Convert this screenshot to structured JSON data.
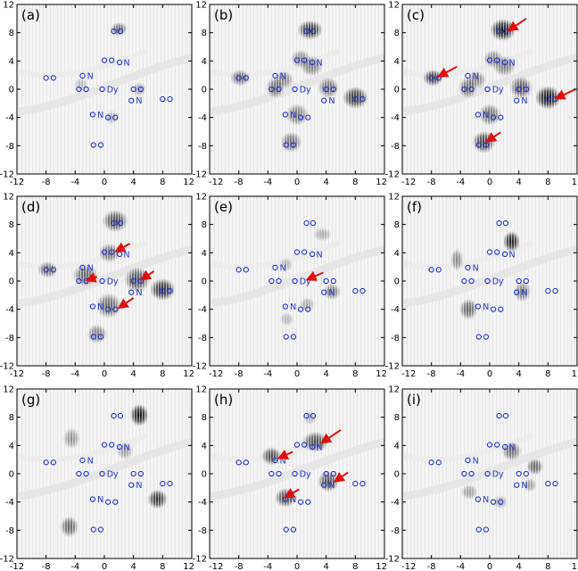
{
  "chart_data": {
    "type": "scatter",
    "description_units": "Angstrom grid, axes -12 to 12",
    "xlim": [
      -12,
      12
    ],
    "ylim": [
      -12,
      12
    ],
    "ticks": [
      -12,
      -8,
      -4,
      0,
      4,
      8,
      12
    ],
    "tick_labels": [
      "-12",
      "-8",
      "-4",
      "0",
      "4",
      "8",
      "12"
    ],
    "colors": {
      "atoms": "#2233cc",
      "arrows": "#e01010",
      "frame": "#000000",
      "blob": "#000000",
      "background_mesh": "#c8c8c8"
    },
    "atoms": [
      {
        "x": 1.3,
        "y": 8.2,
        "label": "O"
      },
      {
        "x": 2.2,
        "y": 8.2,
        "label": "O"
      },
      {
        "x": 0.0,
        "y": 4.1,
        "label": "O"
      },
      {
        "x": 1.0,
        "y": 4.1,
        "label": "O"
      },
      {
        "x": 2.1,
        "y": 3.8,
        "label": "O"
      },
      {
        "x": 3.0,
        "y": 3.8,
        "label": "N"
      },
      {
        "x": -8.0,
        "y": 1.6,
        "label": "O"
      },
      {
        "x": -7.0,
        "y": 1.6,
        "label": "O"
      },
      {
        "x": -3.0,
        "y": 1.9,
        "label": "O"
      },
      {
        "x": -2.0,
        "y": 1.9,
        "label": "N"
      },
      {
        "x": -3.5,
        "y": 0.0,
        "label": "O"
      },
      {
        "x": -2.5,
        "y": 0.0,
        "label": "O"
      },
      {
        "x": -0.3,
        "y": 0.0,
        "label": "O"
      },
      {
        "x": 0.7,
        "y": 0.0,
        "label": "Dy"
      },
      {
        "x": 4.0,
        "y": 0.0,
        "label": "O"
      },
      {
        "x": 5.0,
        "y": 0.0,
        "label": "O"
      },
      {
        "x": 3.7,
        "y": -1.6,
        "label": "O"
      },
      {
        "x": 4.7,
        "y": -1.6,
        "label": "N"
      },
      {
        "x": 8.0,
        "y": -1.4,
        "label": "O"
      },
      {
        "x": 9.0,
        "y": -1.4,
        "label": "O"
      },
      {
        "x": -1.6,
        "y": -3.6,
        "label": "O"
      },
      {
        "x": -0.6,
        "y": -3.6,
        "label": "N"
      },
      {
        "x": 0.5,
        "y": -4.0,
        "label": "O"
      },
      {
        "x": 1.5,
        "y": -4.0,
        "label": "O"
      },
      {
        "x": -1.5,
        "y": -7.9,
        "label": "O"
      },
      {
        "x": -0.5,
        "y": -7.9,
        "label": "O"
      }
    ],
    "panels": [
      {
        "label": "(a)",
        "blobs": [
          {
            "x": 2.0,
            "y": 8.5,
            "w": 1.2,
            "h": 1.0,
            "a": 0.55
          },
          {
            "x": 4.8,
            "y": 0.0,
            "w": 1.0,
            "h": 1.0,
            "a": 0.35
          },
          {
            "x": -3.2,
            "y": 0.6,
            "w": 1.0,
            "h": 1.0,
            "a": 0.25
          },
          {
            "x": 1.0,
            "y": -4.0,
            "w": 1.0,
            "h": 1.0,
            "a": 0.25
          }
        ],
        "arrows": []
      },
      {
        "label": "(b)",
        "blobs": [
          {
            "x": 1.8,
            "y": 8.4,
            "w": 1.8,
            "h": 1.4,
            "a": 0.8
          },
          {
            "x": -1.8,
            "y": 1.3,
            "w": 1.4,
            "h": 1.3,
            "a": 0.45
          },
          {
            "x": -3.0,
            "y": 0.2,
            "w": 1.3,
            "h": 1.5,
            "a": 0.55
          },
          {
            "x": 0.5,
            "y": 4.3,
            "w": 1.4,
            "h": 1.3,
            "a": 0.45
          },
          {
            "x": 2.0,
            "y": 3.3,
            "w": 1.6,
            "h": 1.5,
            "a": 0.5
          },
          {
            "x": 4.3,
            "y": 0.2,
            "w": 1.5,
            "h": 1.5,
            "a": 0.55
          },
          {
            "x": 8.0,
            "y": -1.2,
            "w": 1.8,
            "h": 1.6,
            "a": 0.8
          },
          {
            "x": -7.8,
            "y": 1.6,
            "w": 1.4,
            "h": 1.2,
            "a": 0.55
          },
          {
            "x": 0.0,
            "y": -3.6,
            "w": 1.6,
            "h": 1.6,
            "a": 0.5
          },
          {
            "x": -0.8,
            "y": -7.5,
            "w": 1.5,
            "h": 1.5,
            "a": 0.55
          }
        ],
        "arrows": []
      },
      {
        "label": "(c)",
        "blobs": [
          {
            "x": 1.8,
            "y": 8.4,
            "w": 1.8,
            "h": 1.6,
            "a": 0.95
          },
          {
            "x": -1.8,
            "y": 1.3,
            "w": 1.4,
            "h": 1.3,
            "a": 0.45
          },
          {
            "x": -3.0,
            "y": 0.2,
            "w": 1.3,
            "h": 1.5,
            "a": 0.55
          },
          {
            "x": 0.5,
            "y": 4.3,
            "w": 1.4,
            "h": 1.3,
            "a": 0.45
          },
          {
            "x": 2.0,
            "y": 3.3,
            "w": 1.6,
            "h": 1.5,
            "a": 0.5
          },
          {
            "x": 4.3,
            "y": 0.2,
            "w": 1.6,
            "h": 1.6,
            "a": 0.65
          },
          {
            "x": 8.0,
            "y": -1.2,
            "w": 1.8,
            "h": 1.7,
            "a": 0.95
          },
          {
            "x": -7.8,
            "y": 1.6,
            "w": 1.4,
            "h": 1.2,
            "a": 0.75
          },
          {
            "x": 0.0,
            "y": -3.6,
            "w": 1.6,
            "h": 1.6,
            "a": 0.55
          },
          {
            "x": -0.8,
            "y": -7.5,
            "w": 1.6,
            "h": 1.6,
            "a": 0.75
          }
        ],
        "arrows": [
          {
            "from": [
              5.0,
              10.0
            ],
            "to": [
              2.6,
              8.3
            ]
          },
          {
            "from": [
              -4.5,
              3.2
            ],
            "to": [
              -7.0,
              1.8
            ]
          },
          {
            "from": [
              11.8,
              0.0
            ],
            "to": [
              9.1,
              -1.3
            ]
          },
          {
            "from": [
              1.5,
              -6.1
            ],
            "to": [
              -0.4,
              -7.4
            ]
          }
        ]
      },
      {
        "label": "(d)",
        "blobs": [
          {
            "x": 1.5,
            "y": 8.5,
            "w": 1.8,
            "h": 1.6,
            "a": 0.7
          },
          {
            "x": 0.7,
            "y": 4.0,
            "w": 1.5,
            "h": 1.4,
            "a": 0.55
          },
          {
            "x": -2.6,
            "y": 0.8,
            "w": 1.8,
            "h": 1.6,
            "a": 0.6
          },
          {
            "x": 4.5,
            "y": 0.2,
            "w": 1.8,
            "h": 1.8,
            "a": 0.7
          },
          {
            "x": 8.0,
            "y": -1.2,
            "w": 1.8,
            "h": 1.6,
            "a": 0.85
          },
          {
            "x": -7.8,
            "y": 1.6,
            "w": 1.4,
            "h": 1.2,
            "a": 0.55
          },
          {
            "x": 0.6,
            "y": -3.5,
            "w": 1.8,
            "h": 1.8,
            "a": 0.6
          },
          {
            "x": -1.0,
            "y": -7.5,
            "w": 1.4,
            "h": 1.4,
            "a": 0.5
          }
        ],
        "arrows": [
          {
            "from": [
              3.5,
              5.3
            ],
            "to": [
              1.6,
              4.2
            ]
          },
          {
            "from": [
              -1.0,
              0.6
            ],
            "to": [
              -2.4,
              0.1
            ]
          },
          {
            "from": [
              6.8,
              1.4
            ],
            "to": [
              5.1,
              0.2
            ]
          },
          {
            "from": [
              4.0,
              -2.4
            ],
            "to": [
              2.0,
              -3.8
            ]
          }
        ]
      },
      {
        "label": "(e)",
        "blobs": [
          {
            "x": 3.5,
            "y": 6.6,
            "w": 1.3,
            "h": 1.0,
            "a": 0.3
          },
          {
            "x": 4.8,
            "y": -1.5,
            "w": 1.2,
            "h": 1.2,
            "a": 0.5
          },
          {
            "x": 1.4,
            "y": -3.3,
            "w": 1.1,
            "h": 1.0,
            "a": 0.3
          },
          {
            "x": -1.4,
            "y": -5.4,
            "w": 1.0,
            "h": 1.0,
            "a": 0.25
          },
          {
            "x": -1.5,
            "y": 2.3,
            "w": 1.0,
            "h": 1.0,
            "a": 0.25
          }
        ],
        "arrows": [
          {
            "from": [
              3.6,
              1.2
            ],
            "to": [
              1.4,
              0.2
            ]
          }
        ]
      },
      {
        "label": "(f)",
        "blobs": [
          {
            "x": 3.0,
            "y": 5.6,
            "w": 1.2,
            "h": 1.5,
            "a": 0.9
          },
          {
            "x": -4.5,
            "y": 3.0,
            "w": 0.9,
            "h": 1.6,
            "a": 0.45
          },
          {
            "x": 4.5,
            "y": -1.5,
            "w": 1.2,
            "h": 1.5,
            "a": 0.5
          },
          {
            "x": -2.9,
            "y": -4.0,
            "w": 1.3,
            "h": 1.5,
            "a": 0.6
          }
        ],
        "arrows": []
      },
      {
        "label": "(g)",
        "blobs": [
          {
            "x": 4.8,
            "y": 8.3,
            "w": 1.3,
            "h": 1.6,
            "a": 0.95
          },
          {
            "x": -4.5,
            "y": 5.0,
            "w": 1.2,
            "h": 1.5,
            "a": 0.4
          },
          {
            "x": 7.3,
            "y": -3.6,
            "w": 1.4,
            "h": 1.4,
            "a": 0.8
          },
          {
            "x": -4.8,
            "y": -7.5,
            "w": 1.3,
            "h": 1.5,
            "a": 0.6
          },
          {
            "x": 2.8,
            "y": 3.2,
            "w": 1.2,
            "h": 1.2,
            "a": 0.35
          }
        ],
        "arrows": []
      },
      {
        "label": "(h)",
        "blobs": [
          {
            "x": 2.5,
            "y": 4.5,
            "w": 1.8,
            "h": 1.5,
            "a": 0.7
          },
          {
            "x": -3.5,
            "y": 2.5,
            "w": 1.4,
            "h": 1.3,
            "a": 0.7
          },
          {
            "x": 4.3,
            "y": -1.1,
            "w": 1.5,
            "h": 1.5,
            "a": 0.7
          },
          {
            "x": -1.6,
            "y": -3.4,
            "w": 1.5,
            "h": 1.4,
            "a": 0.7
          },
          {
            "x": 1.8,
            "y": 7.9,
            "w": 1.0,
            "h": 1.0,
            "a": 0.25
          }
        ],
        "arrows": [
          {
            "from": [
              6.0,
              6.2
            ],
            "to": [
              3.4,
              4.4
            ]
          },
          {
            "from": [
              -0.6,
              3.1
            ],
            "to": [
              -2.5,
              2.2
            ]
          },
          {
            "from": [
              7.0,
              0.2
            ],
            "to": [
              5.2,
              -1.1
            ]
          },
          {
            "from": [
              0.3,
              -2.2
            ],
            "to": [
              -1.6,
              -3.3
            ]
          }
        ]
      },
      {
        "label": "(i)",
        "blobs": [
          {
            "x": 3.0,
            "y": 3.2,
            "w": 1.4,
            "h": 1.4,
            "a": 0.55
          },
          {
            "x": 6.2,
            "y": 1.0,
            "w": 1.2,
            "h": 1.2,
            "a": 0.6
          },
          {
            "x": -2.8,
            "y": -2.6,
            "w": 1.2,
            "h": 1.1,
            "a": 0.35
          },
          {
            "x": 5.5,
            "y": -1.6,
            "w": 1.0,
            "h": 1.0,
            "a": 0.35
          },
          {
            "x": 1.5,
            "y": -4.0,
            "w": 1.0,
            "h": 1.0,
            "a": 0.3
          }
        ],
        "arrows": []
      }
    ]
  }
}
